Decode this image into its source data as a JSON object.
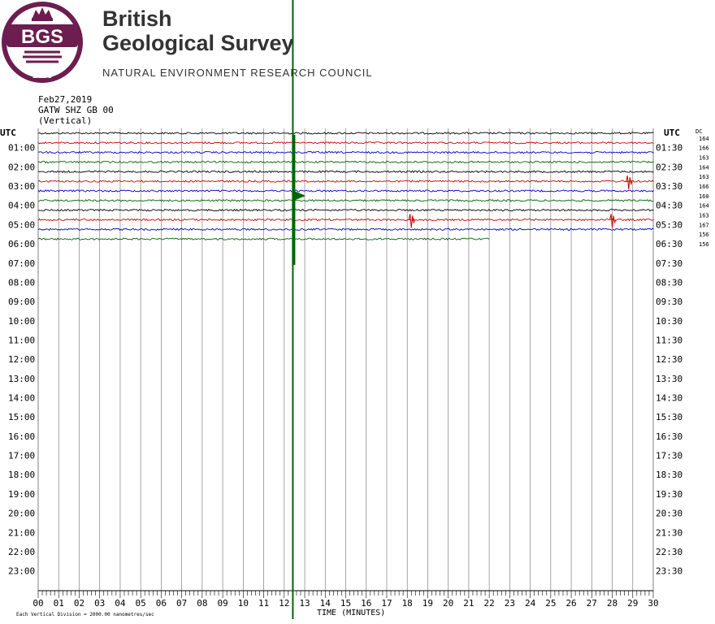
{
  "header": {
    "org_name_line1": "British",
    "org_name_line2": "Geological Survey",
    "council": "NATURAL ENVIRONMENT RESEARCH COUNCIL",
    "logo_text": "BGS",
    "logo_year": "1835"
  },
  "colors": {
    "brand": "#6b1e4f",
    "trace_cycle": [
      "#000000",
      "#cc0000",
      "#0000cc",
      "#006600"
    ],
    "grid": "#808080",
    "event_line": "#006600"
  },
  "chart_data": {
    "type": "line",
    "date": "Feb27,2019",
    "station": "GATW SHZ GB 00",
    "component": "(Vertical)",
    "left_axis_title": "UTC",
    "right_axis_title": "UTC",
    "dc_header": "DC",
    "left_hour_labels": [
      "01:00",
      "02:00",
      "03:00",
      "04:00",
      "05:00",
      "06:00",
      "07:00",
      "08:00",
      "09:00",
      "10:00",
      "11:00",
      "12:00",
      "13:00",
      "14:00",
      "15:00",
      "16:00",
      "17:00",
      "18:00",
      "19:00",
      "20:00",
      "21:00",
      "22:00",
      "23:00"
    ],
    "right_hour_labels": [
      "01:30",
      "02:30",
      "03:30",
      "04:30",
      "05:30",
      "06:30",
      "07:30",
      "08:30",
      "09:30",
      "10:30",
      "11:30",
      "12:30",
      "13:30",
      "14:30",
      "15:30",
      "16:30",
      "17:30",
      "18:30",
      "19:30",
      "20:30",
      "21:30",
      "22:30",
      "23:30"
    ],
    "dc_offsets": [
      "164",
      "166",
      "163",
      "164",
      "163",
      "166",
      "160",
      "164",
      "163",
      "167",
      "156",
      "156"
    ],
    "x_tick_labels": [
      "00",
      "01",
      "02",
      "03",
      "04",
      "05",
      "06",
      "07",
      "08",
      "09",
      "10",
      "11",
      "12",
      "13",
      "14",
      "15",
      "16",
      "17",
      "18",
      "19",
      "20",
      "21",
      "22",
      "23",
      "24",
      "25",
      "26",
      "27",
      "28",
      "29",
      "30"
    ],
    "xlabel": "TIME (MINUTES)",
    "scale_note": "Each Vertical Division = 2000.00 nanometres/sec",
    "xlim": [
      0,
      30
    ],
    "rows_total": 48,
    "rows_recorded": 12,
    "last_row_end_minute": 22,
    "event_minute": 12.5,
    "spikes": [
      {
        "row": 5,
        "minute": 28.8,
        "color": "red"
      },
      {
        "row": 9,
        "minute": 18.2,
        "color": "red"
      },
      {
        "row": 9,
        "minute": 28.0,
        "color": "red"
      }
    ],
    "grid": true
  }
}
